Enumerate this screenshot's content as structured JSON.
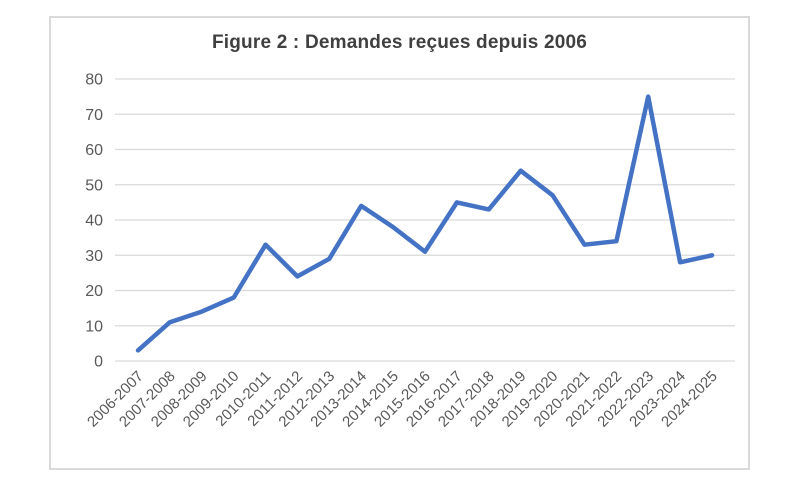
{
  "figure": {
    "title": "Figure 2 : Demandes reçues depuis 2006"
  },
  "chart_data": {
    "type": "line",
    "title": "Figure 2 : Demandes reçues depuis 2006",
    "categories": [
      "2006-2007",
      "2007-2008",
      "2008-2009",
      "2009-2010",
      "2010-2011",
      "2011-2012",
      "2012-2013",
      "2013-2014",
      "2014-2015",
      "2015-2016",
      "2016-2017",
      "2017-2018",
      "2018-2019",
      "2019-2020",
      "2020-2021",
      "2021-2022",
      "2022-2023",
      "2023-2024",
      "2024-2025"
    ],
    "values": [
      3,
      11,
      14,
      18,
      33,
      24,
      29,
      44,
      38,
      31,
      45,
      43,
      54,
      47,
      33,
      34,
      75,
      28,
      30
    ],
    "xlabel": "",
    "ylabel": "",
    "ylim": [
      0,
      80
    ],
    "ytick_step": 10,
    "yticks": [
      0,
      10,
      20,
      30,
      40,
      50,
      60,
      70,
      80
    ],
    "grid": true,
    "legend": "none",
    "x_label_rotation_deg": 45,
    "colors": {
      "line": "#4472C4",
      "gridline": "#D9D9D9",
      "axis_labels": "#595959",
      "title": "#404040",
      "frame_border": "#D9D9D9",
      "background": "#FFFFFF"
    }
  }
}
